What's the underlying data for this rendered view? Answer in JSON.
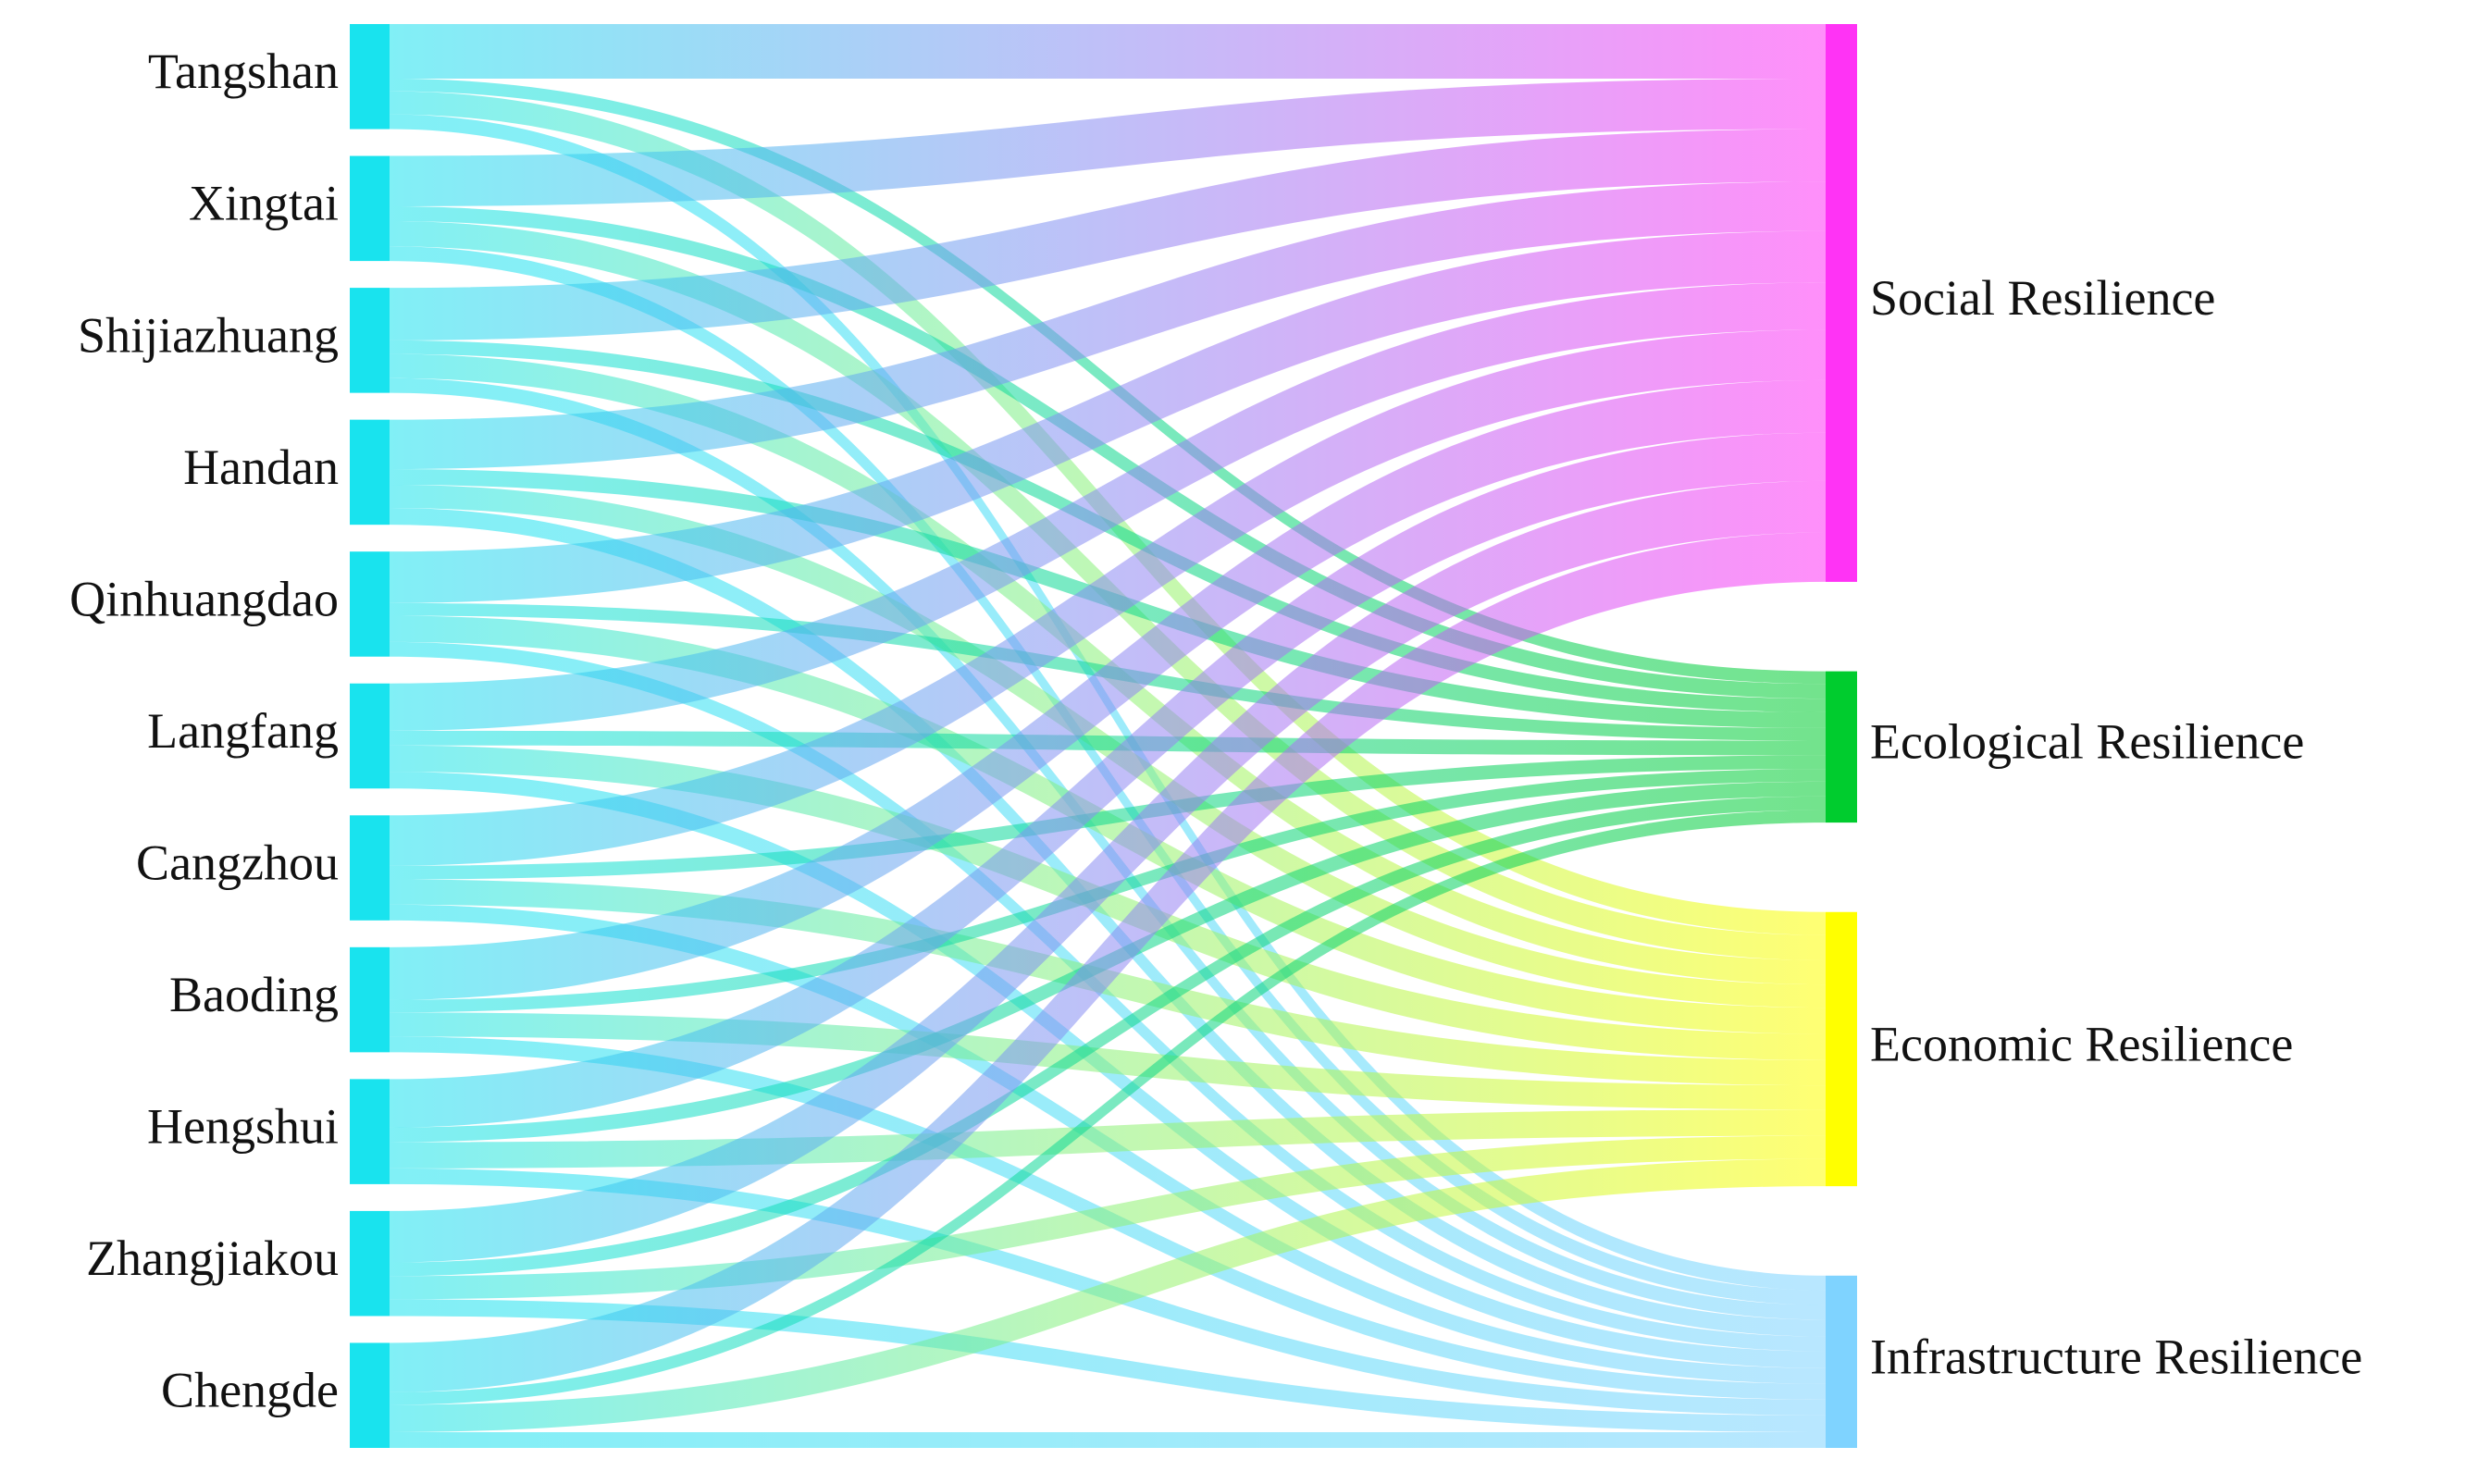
{
  "chart_data": {
    "type": "sankey",
    "sources": [
      "Tangshan",
      "Xingtai",
      "Shijiazhuang",
      "Handan",
      "Qinhuangdao",
      "Langfang",
      "Cangzhou",
      "Baoding",
      "Hengshui",
      "Zhangjiakou",
      "Chengde"
    ],
    "source_color": "#19e3ee",
    "targets": [
      "Social Resilience",
      "Ecological Resilience",
      "Economic Resilience",
      "Infrastructure Resilience"
    ],
    "target_colors": [
      "#ff33f5",
      "#00cc2e",
      "#ffff00",
      "#7fd3ff"
    ],
    "flows": [
      [
        0.52,
        0.12,
        0.22,
        0.14
      ],
      [
        0.48,
        0.14,
        0.24,
        0.14
      ],
      [
        0.5,
        0.13,
        0.23,
        0.14
      ],
      [
        0.47,
        0.15,
        0.22,
        0.16
      ],
      [
        0.49,
        0.12,
        0.25,
        0.14
      ],
      [
        0.45,
        0.14,
        0.25,
        0.16
      ],
      [
        0.48,
        0.13,
        0.24,
        0.15
      ],
      [
        0.5,
        0.12,
        0.23,
        0.15
      ],
      [
        0.46,
        0.14,
        0.25,
        0.15
      ],
      [
        0.49,
        0.13,
        0.22,
        0.16
      ],
      [
        0.47,
        0.12,
        0.26,
        0.15
      ]
    ]
  }
}
